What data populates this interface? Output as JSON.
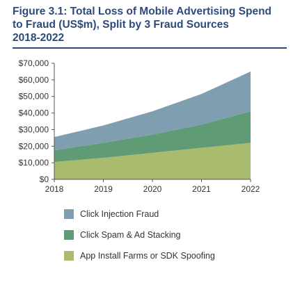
{
  "title_line1": "Figure 3.1: Total Loss of Mobile Advertising Spend",
  "title_line2": "to Fraud (US$m), Split by 3 Fraud Sources",
  "title_line3": "2018-2022",
  "chart_data": {
    "type": "area",
    "stacked": true,
    "title": "Figure 3.1: Total Loss of Mobile Advertising Spend to Fraud (US$m), Split by 3 Fraud Sources 2018-2022",
    "xlabel": "",
    "ylabel": "",
    "x": [
      "2018",
      "2019",
      "2020",
      "2021",
      "2022"
    ],
    "ylim": [
      0,
      70000
    ],
    "yticks": [
      0,
      10000,
      20000,
      30000,
      40000,
      50000,
      60000,
      70000
    ],
    "ytick_labels": [
      "$0",
      "$10,000",
      "$20,000",
      "$30,000",
      "$40,000",
      "$50,000",
      "$60,000",
      "$70,000"
    ],
    "grid": false,
    "legend_position": "bottom",
    "series": [
      {
        "name": "App Install Farms or SDK Spoofing",
        "color": "#a9bb6f",
        "values": [
          10500,
          13000,
          16000,
          19000,
          22000
        ]
      },
      {
        "name": "Click Spam & Ad Stacking",
        "color": "#5f9b74",
        "values": [
          7000,
          9000,
          11000,
          14000,
          19000
        ]
      },
      {
        "name": "Click Injection Fraud",
        "color": "#7f9fb1",
        "values": [
          8000,
          10500,
          14000,
          18500,
          24000
        ]
      }
    ],
    "legend_order": [
      "Click Injection Fraud",
      "Click Spam & Ad Stacking",
      "App Install Farms or SDK Spoofing"
    ]
  }
}
